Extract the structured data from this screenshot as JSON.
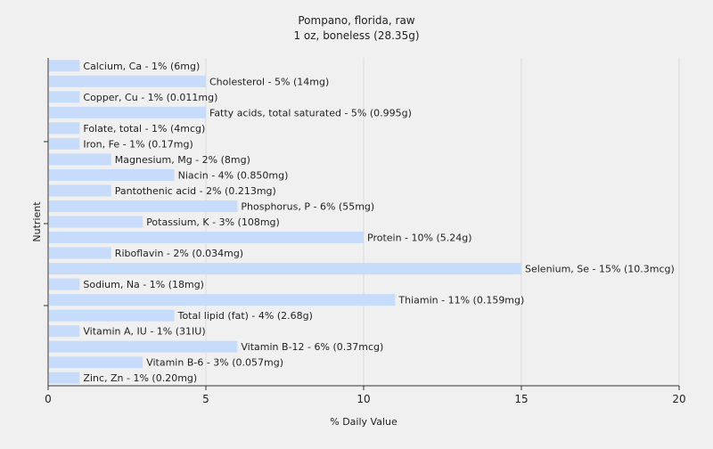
{
  "chart_data": {
    "type": "bar",
    "orientation": "horizontal",
    "title": "Pompano, florida, raw",
    "subtitle": "1 oz, boneless (28.35g)",
    "xlabel": "% Daily Value",
    "ylabel": "Nutrient",
    "xlim": [
      0,
      20
    ],
    "xticks": [
      "0",
      "5",
      "10",
      "15",
      "20"
    ],
    "grid": "vertical",
    "bar_color": "#c6dcfa",
    "categories": [
      "Calcium, Ca",
      "Cholesterol",
      "Copper, Cu",
      "Fatty acids, total saturated",
      "Folate, total",
      "Iron, Fe",
      "Magnesium, Mg",
      "Niacin",
      "Pantothenic acid",
      "Phosphorus, P",
      "Potassium, K",
      "Protein",
      "Riboflavin",
      "Selenium, Se",
      "Sodium, Na",
      "Thiamin",
      "Total lipid (fat)",
      "Vitamin A, IU",
      "Vitamin B-12",
      "Vitamin B-6",
      "Zinc, Zn"
    ],
    "values": [
      1,
      5,
      1,
      5,
      1,
      1,
      2,
      4,
      2,
      6,
      3,
      10,
      2,
      15,
      1,
      11,
      4,
      1,
      6,
      3,
      1
    ],
    "labels": [
      "Calcium, Ca - 1% (6mg)",
      "Cholesterol - 5% (14mg)",
      "Copper, Cu - 1% (0.011mg)",
      "Fatty acids, total saturated - 5% (0.995g)",
      "Folate, total - 1% (4mcg)",
      "Iron, Fe - 1% (0.17mg)",
      "Magnesium, Mg - 2% (8mg)",
      "Niacin - 4% (0.850mg)",
      "Pantothenic acid - 2% (0.213mg)",
      "Phosphorus, P - 6% (55mg)",
      "Potassium, K - 3% (108mg)",
      "Protein - 10% (5.24g)",
      "Riboflavin - 2% (0.034mg)",
      "Selenium, Se - 15% (10.3mcg)",
      "Sodium, Na - 1% (18mg)",
      "Thiamin - 11% (0.159mg)",
      "Total lipid (fat) - 4% (2.68g)",
      "Vitamin A, IU - 1% (31IU)",
      "Vitamin B-12 - 6% (0.37mcg)",
      "Vitamin B-6 - 3% (0.057mg)",
      "Zinc, Zn - 1% (0.20mg)"
    ]
  }
}
